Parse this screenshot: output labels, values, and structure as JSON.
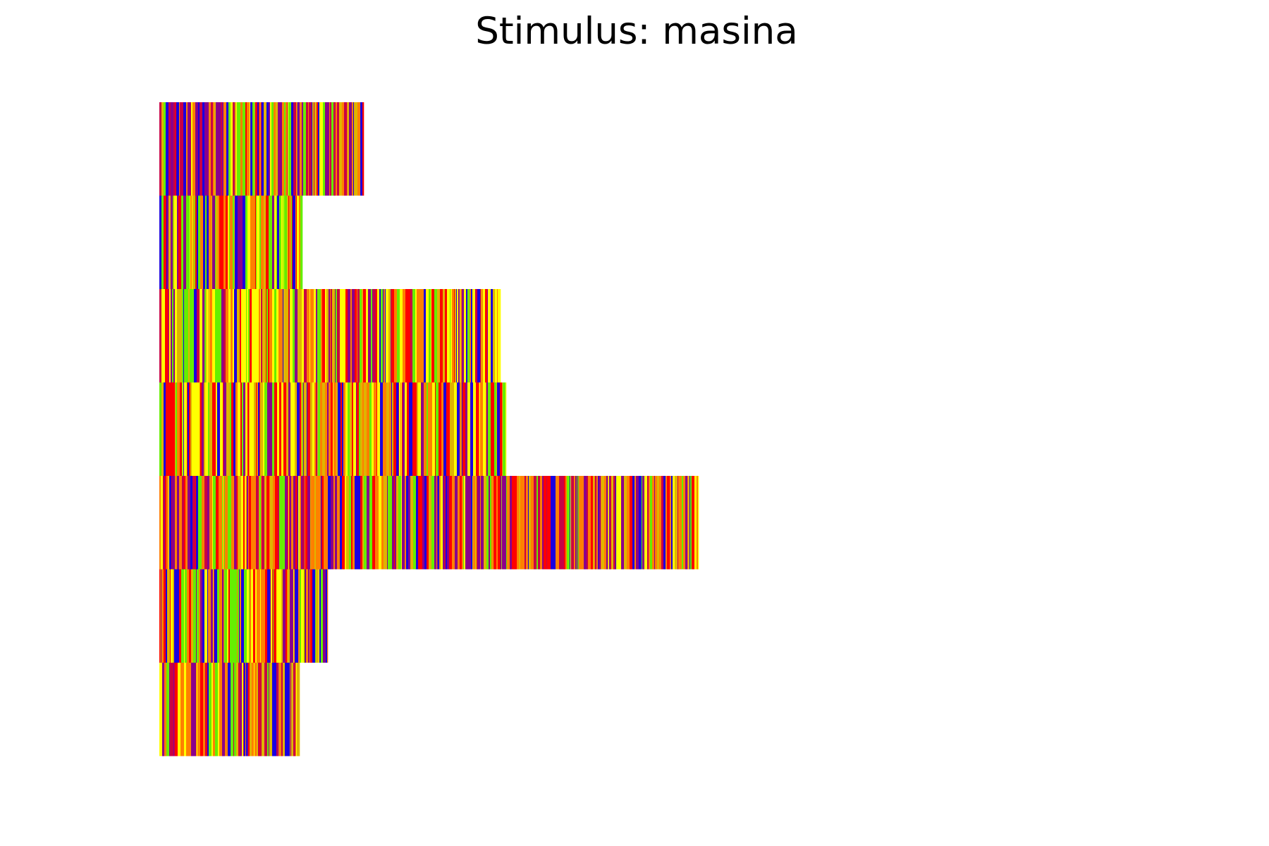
{
  "chart_data": {
    "type": "heatmap",
    "title": "Stimulus: masina",
    "xlabel": "",
    "ylabel": "",
    "axes_visible": false,
    "grid": false,
    "legend": "none",
    "row_lengths": [
      290,
      203,
      484,
      492,
      765,
      239,
      199
    ],
    "palette": {
      "red": "#ff0000",
      "orange": "#ff8000",
      "yellow": "#ffff00",
      "green": "#66ee00",
      "blue": "#1a00e0",
      "purple": "#8b008b",
      "crimson": "#c80046",
      "gold": "#e0b400"
    },
    "row_mixes": [
      [
        "purple",
        "crimson",
        "orange",
        "yellow",
        "green",
        "red",
        "blue",
        "gold"
      ],
      [
        "green",
        "yellow",
        "orange",
        "blue",
        "red",
        "purple",
        "gold"
      ],
      [
        "yellow",
        "orange",
        "green",
        "blue",
        "purple",
        "red",
        "gold",
        "crimson"
      ],
      [
        "red",
        "yellow",
        "orange",
        "gold",
        "green",
        "blue",
        "purple"
      ],
      [
        "orange",
        "purple",
        "red",
        "yellow",
        "blue",
        "green",
        "gold",
        "crimson"
      ],
      [
        "yellow",
        "red",
        "orange",
        "purple",
        "blue",
        "green",
        "gold"
      ],
      [
        "orange",
        "yellow",
        "red",
        "purple",
        "crimson",
        "blue",
        "green",
        "gold"
      ]
    ]
  }
}
